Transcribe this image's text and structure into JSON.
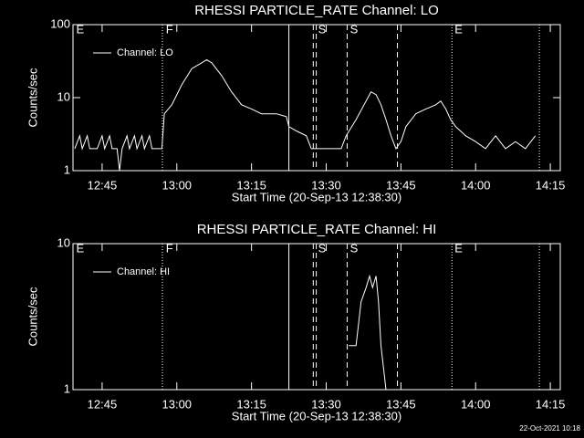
{
  "chart_data": [
    {
      "type": "line",
      "title": "RHESSI PARTICLE_RATE Channel: LO",
      "x_label": "Start Time (20-Sep-13 12:38:30)",
      "y_label": "Counts/sec",
      "log_y": true,
      "legend": "upper-left",
      "color": "#ffffff",
      "xlim": [
        759.15,
        857
      ],
      "ylim": [
        1,
        100
      ],
      "yticks": [
        1,
        10,
        100
      ],
      "xticks": [
        {
          "value": 765,
          "label": "12:45"
        },
        {
          "value": 780,
          "label": "13:00"
        },
        {
          "value": 795,
          "label": "13:15"
        },
        {
          "value": 810,
          "label": "13:30"
        },
        {
          "value": 825,
          "label": "13:45"
        },
        {
          "value": 840,
          "label": "14:00"
        },
        {
          "value": 855,
          "label": "14:15"
        }
      ],
      "markers": [
        {
          "x": 777.1,
          "style": "dotted"
        },
        {
          "x": 802.5,
          "style": "solid"
        },
        {
          "x": 807.4,
          "style": "dashed"
        },
        {
          "x": 808.0,
          "style": "dashed"
        },
        {
          "x": 814.2,
          "style": "dashed"
        },
        {
          "x": 824.3,
          "style": "dashed"
        },
        {
          "x": 835.25,
          "style": "dotted"
        },
        {
          "x": 852.8,
          "style": "dotted"
        }
      ],
      "marker_labels": [
        {
          "x": 759.6,
          "text": "E"
        },
        {
          "x": 777.6,
          "text": "F"
        },
        {
          "x": 808.2,
          "text": "S"
        },
        {
          "x": 814.6,
          "text": "S"
        },
        {
          "x": 835.6,
          "text": "E"
        }
      ],
      "series": [
        {
          "name": "Channel: LO",
          "color": "#ffffff",
          "x": [
            759.5,
            760.5,
            761,
            762,
            762.5,
            764,
            765,
            765.5,
            766.5,
            767,
            768,
            768.5,
            769,
            770,
            770.5,
            771.5,
            772,
            773,
            773.5,
            774.5,
            775,
            777,
            777.5,
            779,
            781,
            783,
            785,
            786,
            787,
            789,
            791,
            793,
            795,
            797,
            800,
            802,
            802.5,
            804,
            806,
            807,
            809,
            811,
            813,
            814,
            816,
            818,
            819,
            820,
            821,
            822,
            823,
            824,
            825,
            826,
            828,
            830,
            832,
            833,
            834,
            835,
            836,
            838,
            840,
            842,
            844,
            846,
            848,
            850,
            852
          ],
          "values": [
            2,
            3,
            2,
            3,
            2,
            2,
            3,
            2,
            3,
            2,
            2,
            1,
            2,
            3,
            2,
            3,
            2,
            3,
            2,
            3,
            2,
            2,
            6,
            8,
            15,
            25,
            30,
            33,
            30,
            20,
            12,
            8,
            7,
            6,
            6,
            5.5,
            4,
            3.5,
            3,
            2,
            2,
            2,
            2,
            3,
            5,
            9,
            12,
            11,
            8,
            5,
            3,
            2,
            2.5,
            4,
            6,
            7,
            8,
            9,
            7,
            5,
            4,
            3,
            2.5,
            2,
            3,
            2,
            2.5,
            2,
            3
          ]
        }
      ]
    },
    {
      "type": "line",
      "title": "RHESSI PARTICLE_RATE Channel: HI",
      "x_label": "Start Time (20-Sep-13 12:38:30)",
      "y_label": "Counts/sec",
      "log_y": true,
      "legend": "upper-left",
      "color": "#ffffff",
      "xlim": [
        759.15,
        857
      ],
      "ylim": [
        1,
        10
      ],
      "yticks": [
        1,
        10
      ],
      "xticks": [
        {
          "value": 765,
          "label": "12:45"
        },
        {
          "value": 780,
          "label": "13:00"
        },
        {
          "value": 795,
          "label": "13:15"
        },
        {
          "value": 810,
          "label": "13:30"
        },
        {
          "value": 825,
          "label": "13:45"
        },
        {
          "value": 840,
          "label": "14:00"
        },
        {
          "value": 855,
          "label": "14:15"
        }
      ],
      "markers": [
        {
          "x": 777.1,
          "style": "dotted"
        },
        {
          "x": 802.5,
          "style": "solid"
        },
        {
          "x": 807.4,
          "style": "dashed"
        },
        {
          "x": 808.0,
          "style": "dashed"
        },
        {
          "x": 814.2,
          "style": "dashed"
        },
        {
          "x": 824.3,
          "style": "dashed"
        },
        {
          "x": 835.25,
          "style": "dotted"
        },
        {
          "x": 852.8,
          "style": "dotted"
        }
      ],
      "marker_labels": [
        {
          "x": 759.6,
          "text": "E"
        },
        {
          "x": 777.6,
          "text": "F"
        },
        {
          "x": 808.2,
          "text": "S"
        },
        {
          "x": 814.6,
          "text": "S"
        },
        {
          "x": 835.6,
          "text": "E"
        }
      ],
      "series": [
        {
          "name": "Channel: HI",
          "color": "#ffffff",
          "x": [
            814.5,
            816,
            817,
            818,
            818.7,
            819.3,
            820,
            820.5,
            821,
            822
          ],
          "values": [
            2,
            2,
            4,
            5,
            6,
            5,
            6,
            4,
            2,
            1
          ]
        }
      ]
    }
  ],
  "footer": "22-Oct-2021 10:18"
}
